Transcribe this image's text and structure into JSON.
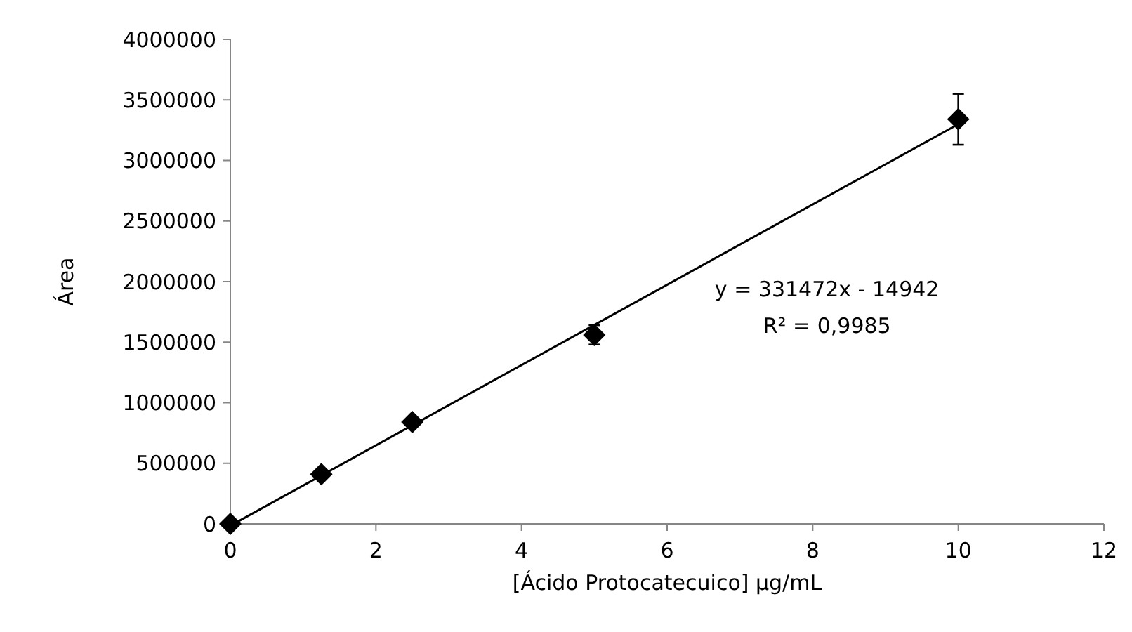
{
  "chart_data": {
    "type": "scatter",
    "xlabel": "[Ácido Protocatecuico] µg/mL",
    "ylabel": "Área",
    "xlim": [
      0,
      12
    ],
    "xticks": [
      0,
      2,
      4,
      6,
      8,
      10,
      12
    ],
    "ylim": [
      0,
      4000000
    ],
    "yticks": [
      0,
      500000,
      1000000,
      1500000,
      2000000,
      2500000,
      3000000,
      3500000,
      4000000
    ],
    "grid": false,
    "marker": "diamond",
    "series": [
      {
        "color": "#000000",
        "x": [
          0,
          1.25,
          2.5,
          5,
          10
        ],
        "values": [
          0,
          410000,
          840000,
          1560000,
          3340000
        ],
        "errors": [
          null,
          null,
          null,
          80000,
          210000
        ]
      },
      {
        "type": "line",
        "color": "#000000",
        "x": [
          0.1,
          10
        ],
        "values": [
          18000,
          3300000
        ],
        "marker": "none",
        "line_style": "solid"
      }
    ],
    "annotations": [
      "y = 331472x - 14942",
      "R² = 0,9985"
    ]
  }
}
